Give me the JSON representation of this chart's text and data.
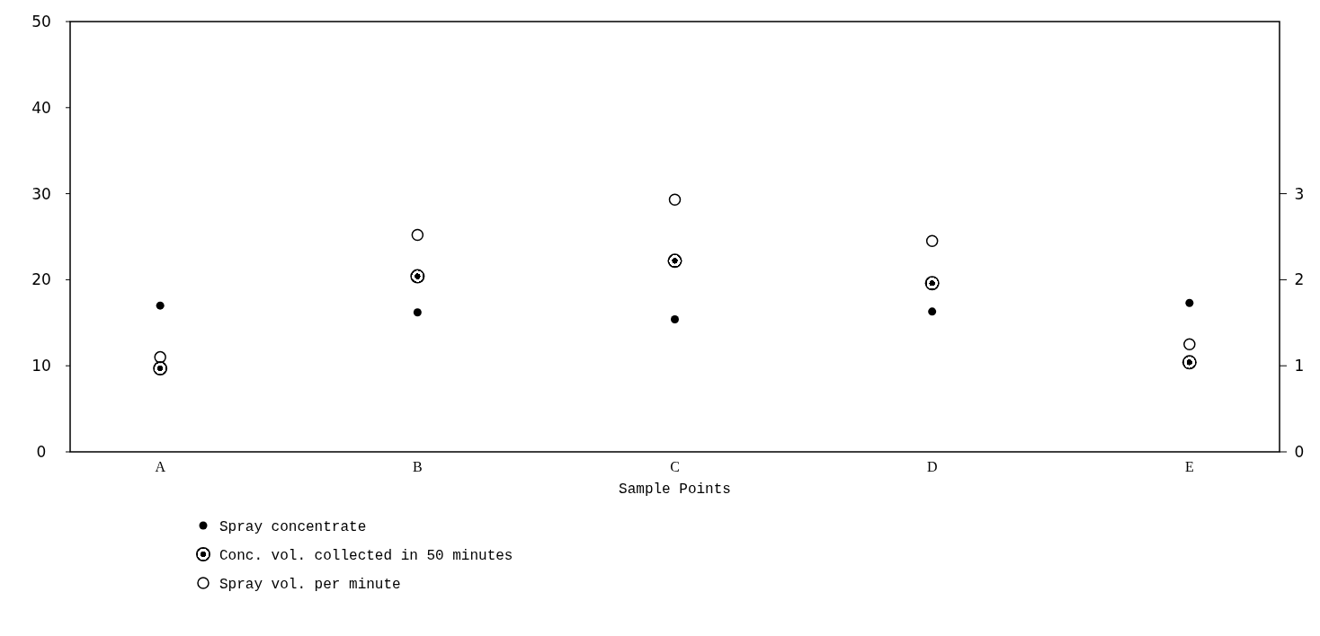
{
  "chart_data": {
    "type": "scatter",
    "xlabel": "Sample Points",
    "categories": [
      "A",
      "B",
      "C",
      "D",
      "E"
    ],
    "series": [
      {
        "name": "Spray concentrate",
        "color": "#000000",
        "values": [
          17.0,
          16.2,
          15.4,
          16.3,
          17.3
        ]
      },
      {
        "name": "Conc. vol. collected in 50 minutes",
        "color": "#000000",
        "values": [
          9.7,
          20.4,
          22.2,
          19.6,
          10.4
        ]
      },
      {
        "name": "Spray vol. per minute",
        "color": "#000000",
        "values": [
          11.0,
          25.2,
          29.3,
          24.5,
          12.5
        ]
      }
    ],
    "ylim": [
      0,
      50
    ],
    "yticks": [
      0,
      10,
      20,
      30,
      40,
      50
    ],
    "y2lim": [
      0,
      5
    ],
    "y2ticks": [
      0,
      1,
      2,
      3
    ],
    "marker": "circle",
    "grid": false,
    "legend": "bottom"
  }
}
